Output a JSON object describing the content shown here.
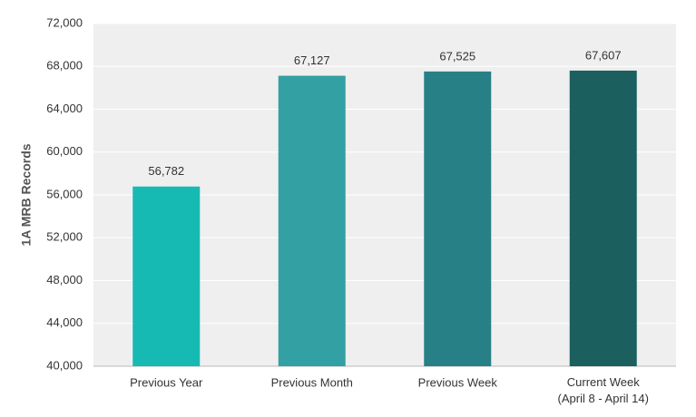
{
  "chart_data": {
    "type": "bar",
    "y_label": "1A MRB Records",
    "categories": [
      "Previous Year",
      "Previous Month",
      "Previous Week",
      "Current Week\n(April 8 - April 14)"
    ],
    "values": [
      56782,
      67127,
      67525,
      67607
    ],
    "value_labels": [
      "56,782",
      "67,127",
      "67,525",
      "67,607"
    ],
    "colors": [
      "#17bab3",
      "#33a0a3",
      "#268086",
      "#1b605e"
    ],
    "ylim": [
      40000,
      72000
    ],
    "yticks": [
      {
        "value": 40000,
        "label": "40,000"
      },
      {
        "value": 44000,
        "label": "44,000"
      },
      {
        "value": 48000,
        "label": "48,000"
      },
      {
        "value": 52000,
        "label": "52,000"
      },
      {
        "value": 56000,
        "label": "56,000"
      },
      {
        "value": 60000,
        "label": "60,000"
      },
      {
        "value": 64000,
        "label": "64,000"
      },
      {
        "value": 68000,
        "label": "68,000"
      },
      {
        "value": 72000,
        "label": "72,000"
      }
    ],
    "grid": true
  }
}
